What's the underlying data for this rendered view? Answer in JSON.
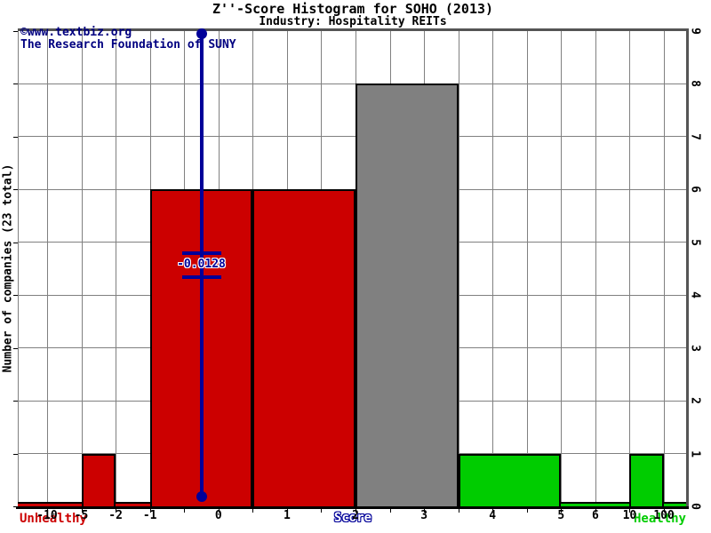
{
  "title": "Z''-Score Histogram for SOHO (2013)",
  "subtitle": "Industry: Hospitality REITs",
  "watermark": {
    "line1": "©www.textbiz.org",
    "line2": "The Research Foundation of SUNY"
  },
  "axes": {
    "y_label": "Number of companies (23 total)",
    "x_label": "Score",
    "left_caption": "Unhealthy",
    "right_caption": "Healthy"
  },
  "colors": {
    "unhealthy": "#cc0000",
    "healthy": "#00cc00",
    "neutral": "#808080",
    "marker": "#000099",
    "watermark_text": "#000080",
    "grid": "#808080"
  },
  "chart_data": {
    "type": "bar",
    "title": "Z''-Score Histogram for SOHO (2013)",
    "subtitle": "Industry: Hospitality REITs",
    "xlabel": "Score",
    "ylabel": "Number of companies (23 total)",
    "total_companies": 23,
    "ylim": [
      0,
      9
    ],
    "y_ticks": [
      0,
      1,
      2,
      3,
      4,
      5,
      6,
      7,
      8,
      9
    ],
    "x_edges": [
      -10,
      -5,
      -2,
      -1,
      -0.5,
      0,
      0.5,
      1,
      1.5,
      2,
      2.5,
      3,
      3.5,
      4,
      4.5,
      5,
      6,
      10,
      100
    ],
    "x_edge_labels": [
      "-10",
      "-5",
      "-2",
      "-1",
      "",
      "0",
      "",
      "1",
      "",
      "2",
      "",
      "3",
      "",
      "4",
      "",
      "5",
      "6",
      "10",
      "100"
    ],
    "bins": [
      {
        "from": -5,
        "to": -2,
        "count": 1,
        "zone": "unhealthy"
      },
      {
        "from": -1,
        "to": 0.5,
        "count": 6,
        "zone": "unhealthy"
      },
      {
        "from": 0.5,
        "to": 2,
        "count": 6,
        "zone": "unhealthy"
      },
      {
        "from": 2,
        "to": 3.5,
        "count": 8,
        "zone": "neutral"
      },
      {
        "from": 3.5,
        "to": 5,
        "count": 1,
        "zone": "healthy"
      },
      {
        "from": 10,
        "to": 100,
        "count": 1,
        "zone": "healthy"
      }
    ],
    "zone_strips": [
      {
        "from": "left",
        "to": -1,
        "zone": "unhealthy"
      },
      {
        "from": 5,
        "to": "right",
        "zone": "healthy"
      }
    ],
    "marker": {
      "value": -0.0128,
      "label": "-0.0128"
    },
    "legend": "none",
    "grid": true
  }
}
